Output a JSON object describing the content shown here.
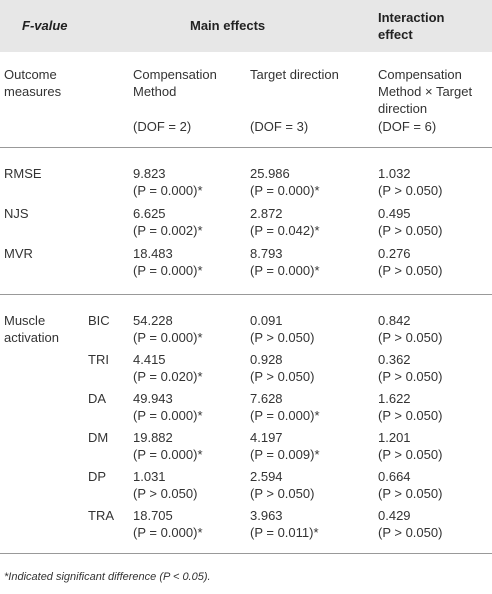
{
  "header": {
    "label": "F-value",
    "main_effects": "Main effects",
    "interaction_effect": "Interaction effect"
  },
  "subheader": {
    "label": "Outcome measures",
    "columns": [
      "Compensation Method",
      "Target direction",
      "Compensation Method × Target direction"
    ],
    "dof": [
      "(DOF = 2)",
      "(DOF = 3)",
      "(DOF = 6)"
    ]
  },
  "rows": [
    {
      "label": "RMSE",
      "cells": [
        [
          "9.823",
          "(P = 0.000)*"
        ],
        [
          "25.986",
          "(P = 0.000)*"
        ],
        [
          "1.032",
          "(P > 0.050)"
        ]
      ]
    },
    {
      "label": "NJS",
      "cells": [
        [
          "6.625",
          "(P = 0.002)*"
        ],
        [
          "2.872",
          "(P = 0.042)*"
        ],
        [
          "0.495",
          "(P > 0.050)"
        ]
      ]
    },
    {
      "label": "MVR",
      "cells": [
        [
          "18.483",
          "(P = 0.000)*"
        ],
        [
          "8.793",
          "(P = 0.000)*"
        ],
        [
          "0.276",
          "(P > 0.050)"
        ]
      ]
    }
  ],
  "group": {
    "label": "Muscle activation",
    "rows": [
      {
        "label": "BIC",
        "cells": [
          [
            "54.228",
            "(P = 0.000)*"
          ],
          [
            "0.091",
            "(P > 0.050)"
          ],
          [
            "0.842",
            "(P > 0.050)"
          ]
        ]
      },
      {
        "label": "TRI",
        "cells": [
          [
            "4.415",
            "(P = 0.020)*"
          ],
          [
            "0.928",
            "(P > 0.050)"
          ],
          [
            "0.362",
            "(P > 0.050)"
          ]
        ]
      },
      {
        "label": "DA",
        "cells": [
          [
            "49.943",
            "(P = 0.000)*"
          ],
          [
            "7.628",
            "(P = 0.000)*"
          ],
          [
            "1.622",
            "(P > 0.050)"
          ]
        ]
      },
      {
        "label": "DM",
        "cells": [
          [
            "19.882",
            "(P = 0.000)*"
          ],
          [
            "4.197",
            "(P = 0.009)*"
          ],
          [
            "1.201",
            "(P > 0.050)"
          ]
        ]
      },
      {
        "label": "DP",
        "cells": [
          [
            "1.031",
            "(P > 0.050)"
          ],
          [
            "2.594",
            "(P > 0.050)"
          ],
          [
            "0.664",
            "(P > 0.050)"
          ]
        ]
      },
      {
        "label": "TRA",
        "cells": [
          [
            "18.705",
            "(P = 0.000)*"
          ],
          [
            "3.963",
            "(P = 0.011)*"
          ],
          [
            "0.429",
            "(P > 0.050)"
          ]
        ]
      }
    ]
  },
  "footnote": "*Indicated significant difference (P < 0.05)."
}
